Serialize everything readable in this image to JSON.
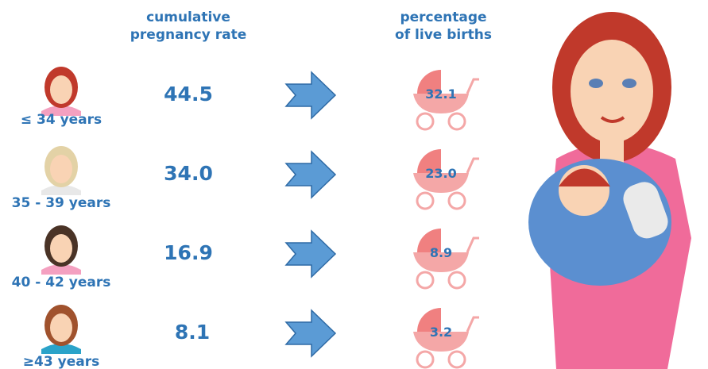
{
  "header": {
    "rate_title": [
      "cumulative",
      "pregnancy rate"
    ],
    "births_title": [
      "percentage",
      "of live births"
    ]
  },
  "rows": [
    {
      "label": "≤ 34 years",
      "rate": "44.5",
      "births": "32.1"
    },
    {
      "label": "35 - 39 years",
      "rate": "34.0",
      "births": "23.0"
    },
    {
      "label": "40 - 42 years",
      "rate": "16.9",
      "births": "8.9"
    },
    {
      "label": "≥43 years",
      "rate": "8.1",
      "births": "3.2"
    }
  ]
}
